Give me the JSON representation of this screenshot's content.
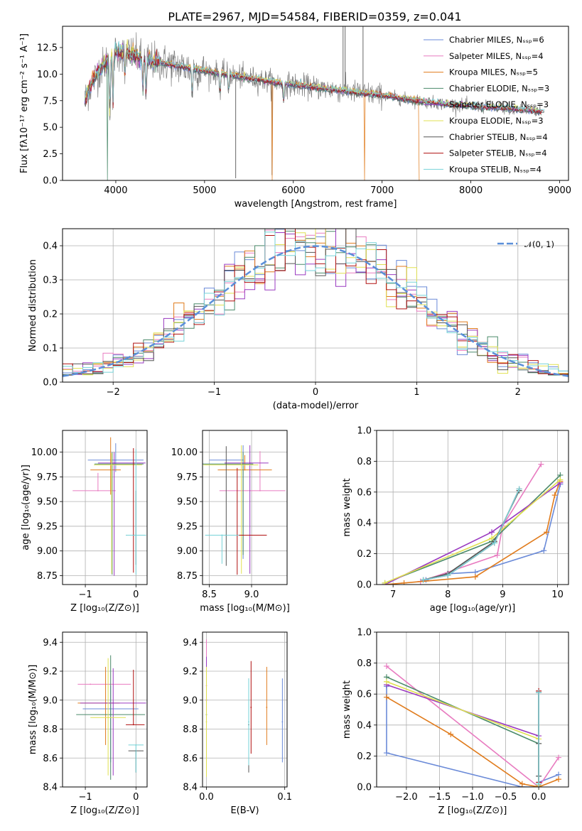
{
  "title": "PLATE=2967, MJD=54584, FIBERID=0359, z=0.041",
  "colors": {
    "chabrier_miles": "#6a8ad8",
    "salpeter_miles": "#e87bc0",
    "kroupa_miles": "#e07b1c",
    "chabrier_elodie": "#4a8a6a",
    "salpeter_elodie": "#9a3ac0",
    "kroupa_elodie": "#e0e050",
    "chabrier_stelib": "#555555",
    "salpeter_stelib": "#b01010",
    "kroupa_stelib": "#76d2d8",
    "observed": "#808080",
    "gaussian": "#5b8fd9"
  },
  "chart_data": [
    {
      "id": "spectrum",
      "type": "line",
      "xlabel": "wavelength [Angstrom, rest frame]",
      "ylabel": "Flux [fλ10⁻¹⁷ erg cm⁻² s⁻¹ A⁻¹]",
      "xlim": [
        3400,
        9100
      ],
      "ylim": [
        0,
        14.5
      ],
      "xticks": [
        "4000",
        "5000",
        "6000",
        "7000",
        "8000",
        "9000"
      ],
      "yticks": [
        "0.0",
        "2.5",
        "5.0",
        "7.5",
        "10.0",
        "12.5"
      ],
      "legend_position": "upper-right",
      "legend": [
        "Chabrier MILES, Nₛₛₚ=6",
        "Salpeter MILES, Nₛₛₚ=4",
        "Kroupa MILES, Nₛₛₚ=5",
        "Chabrier ELODIE, Nₛₛₚ=3",
        "Salpeter ELODIE, Nₛₛₚ=3",
        "Kroupa ELODIE, Nₛₛₚ=3",
        "Chabrier STELIB, Nₛₛₚ=4",
        "Salpeter STELIB, Nₛₛₚ=4",
        "Kroupa STELIB, Nₛₛₚ=4"
      ],
      "continuum": {
        "x": [
          3650,
          3700,
          3800,
          3900,
          4000,
          4100,
          4200,
          4300,
          4500,
          4800,
          5000,
          5300,
          5600,
          5900,
          6200,
          6500,
          6800,
          7000,
          7300,
          7600,
          8000,
          8400,
          8800
        ],
        "y": [
          7.5,
          8.6,
          10.2,
          11.2,
          12.0,
          12.1,
          11.8,
          11.4,
          11.1,
          10.6,
          10.3,
          9.9,
          9.5,
          9.1,
          8.8,
          8.5,
          8.2,
          8.0,
          7.6,
          7.3,
          7.0,
          6.8,
          6.5
        ]
      },
      "absorption_lines": [
        {
          "x": 3933,
          "depth": 0.45
        },
        {
          "x": 3968,
          "depth": 0.4
        },
        {
          "x": 4102,
          "depth": 0.2
        },
        {
          "x": 4304,
          "depth": 0.25
        },
        {
          "x": 4340,
          "depth": 0.3
        },
        {
          "x": 4861,
          "depth": 0.25
        },
        {
          "x": 5175,
          "depth": 0.2
        },
        {
          "x": 5270,
          "depth": 0.15
        },
        {
          "x": 5892,
          "depth": 0.2
        }
      ],
      "model_dropouts": [
        {
          "x": 3905,
          "series": "chabrier_elodie"
        },
        {
          "x": 5765,
          "series": "kroupa_miles"
        },
        {
          "x": 6800,
          "series": "kroupa_miles"
        },
        {
          "x": 7420,
          "series": "kroupa_miles"
        }
      ],
      "observed_spikes": [
        {
          "x": 5350,
          "y": 0.2
        },
        {
          "x": 5760,
          "y": 0.5
        },
        {
          "x": 6560,
          "y": 14.5
        },
        {
          "x": 6583,
          "y": 14.5
        },
        {
          "x": 6785,
          "y": 14.5
        }
      ]
    },
    {
      "id": "residuals",
      "type": "line",
      "xlabel": "(data-model)/error",
      "ylabel": "Normed distribution",
      "xlim": [
        -2.5,
        2.5
      ],
      "ylim": [
        0,
        0.45
      ],
      "xticks": [
        "−2",
        "−1",
        "0",
        "1",
        "2"
      ],
      "yticks": [
        "0.0",
        "0.1",
        "0.2",
        "0.3",
        "0.4"
      ],
      "legend_position": "upper-right",
      "legend": [
        "𝒩(0, 1)"
      ],
      "bin_width": 0.1,
      "bin_start": -2.5,
      "base_gaussian_sigma": 1.0
    },
    {
      "id": "age-vs-Z",
      "type": "scatter",
      "xlabel": "Z [log₁₀(Z/Z⊙)]",
      "ylabel": "age  [log₁₀(age/yr)]",
      "xlim": [
        -1.45,
        0.22
      ],
      "ylim": [
        8.66,
        10.22
      ],
      "xticks": [
        "−1",
        "0"
      ],
      "yticks": [
        "8.75",
        "9.00",
        "9.25",
        "9.50",
        "9.75",
        "10.00"
      ],
      "points": [
        {
          "series": "chabrier_miles",
          "x": -0.4,
          "xerr": [
            0.55,
            0.55
          ],
          "y": 9.92,
          "yerr": [
            0.12,
            0.17
          ]
        },
        {
          "series": "salpeter_miles",
          "x": -0.75,
          "xerr": [
            0.5,
            0.35
          ],
          "y": 9.61,
          "yerr": [
            0.0,
            0.18
          ]
        },
        {
          "series": "kroupa_miles",
          "x": -0.5,
          "xerr": [
            0.4,
            0.2
          ],
          "y": 9.82,
          "yerr": [
            0.25,
            0.33
          ]
        },
        {
          "series": "chabrier_elodie",
          "x": -0.47,
          "xerr": [
            0.35,
            0.62
          ],
          "y": 9.88,
          "yerr": [
            1.12,
            0.12
          ]
        },
        {
          "series": "salpeter_elodie",
          "x": -0.43,
          "xerr": [
            0.32,
            0.62
          ],
          "y": 9.89,
          "yerr": [
            1.14,
            0.11
          ]
        },
        {
          "series": "kroupa_elodie",
          "x": -0.48,
          "xerr": [
            0.35,
            0.6
          ],
          "y": 9.87,
          "yerr": [
            1.1,
            0.12
          ]
        },
        {
          "series": "chabrier_stelib",
          "x": 0.0,
          "xerr": [
            0.0,
            0.0
          ],
          "y": 9.16,
          "yerr": [
            0.3,
            0.45
          ]
        },
        {
          "series": "salpeter_stelib",
          "x": -0.05,
          "xerr": [
            0.15,
            0.2
          ],
          "y": 9.16,
          "yerr": [
            0.38,
            0.88
          ]
        },
        {
          "series": "kroupa_stelib",
          "x": 0.0,
          "xerr": [
            0.2,
            0.2
          ],
          "y": 9.16,
          "yerr": [
            0.4,
            0.87
          ]
        }
      ]
    },
    {
      "id": "age-vs-mass",
      "type": "scatter",
      "xlabel": "mass [log₁₀(M/M⊙)]",
      "ylabel": "",
      "xlim": [
        8.42,
        9.42
      ],
      "ylim": [
        8.66,
        10.22
      ],
      "xticks": [
        "8.5",
        "9.0"
      ],
      "yticks": [
        "8.75",
        "9.00",
        "9.25",
        "9.50",
        "9.75",
        "10.00"
      ],
      "points": [
        {
          "series": "chabrier_miles",
          "x": 8.9,
          "xerr": [
            0.4,
            0.0
          ],
          "y": 9.92,
          "yerr": [
            1.0,
            0.15
          ]
        },
        {
          "series": "salpeter_miles",
          "x": 9.1,
          "xerr": [
            0.48,
            0.3
          ],
          "y": 9.61,
          "yerr": [
            0.0,
            0.4
          ]
        },
        {
          "series": "kroupa_miles",
          "x": 8.92,
          "xerr": [
            0.32,
            0.32
          ],
          "y": 9.82,
          "yerr": [
            0.0,
            0.15
          ]
        },
        {
          "series": "chabrier_elodie",
          "x": 8.9,
          "xerr": [
            0.62,
            0.12
          ],
          "y": 9.88,
          "yerr": [
            0.92,
            0.12
          ]
        },
        {
          "series": "salpeter_elodie",
          "x": 8.98,
          "xerr": [
            0.3,
            0.22
          ],
          "y": 9.89,
          "yerr": [
            1.12,
            0.18
          ]
        },
        {
          "series": "kroupa_elodie",
          "x": 8.88,
          "xerr": [
            0.45,
            0.2
          ],
          "y": 9.87,
          "yerr": [
            1.1,
            0.2
          ]
        },
        {
          "series": "chabrier_stelib",
          "x": 8.7,
          "xerr": [
            0.2,
            0.0
          ],
          "y": 9.16,
          "yerr": [
            0.31,
            0.9
          ]
        },
        {
          "series": "salpeter_stelib",
          "x": 8.83,
          "xerr": [
            0.0,
            0.35
          ],
          "y": 9.16,
          "yerr": [
            0.4,
            0.68
          ]
        },
        {
          "series": "kroupa_stelib",
          "x": 8.65,
          "xerr": [
            0.2,
            0.2
          ],
          "y": 9.16,
          "yerr": [
            0.29,
            0.0
          ]
        }
      ]
    },
    {
      "id": "weight-vs-age",
      "type": "line",
      "xlabel": "age  [log₁₀(age/yr)]",
      "ylabel": "mass weight",
      "xlim": [
        6.7,
        10.2
      ],
      "ylim": [
        0,
        1.0
      ],
      "xticks": [
        "7",
        "8",
        "9",
        "10"
      ],
      "yticks": [
        "0.0",
        "0.2",
        "0.4",
        "0.6",
        "0.8",
        "1.0"
      ],
      "series": [
        {
          "series": "chabrier_miles",
          "x": [
            7.6,
            8.0,
            8.5,
            9.75,
            10.05
          ],
          "y": [
            0.03,
            0.07,
            0.08,
            0.22,
            0.65
          ]
        },
        {
          "series": "salpeter_miles",
          "x": [
            7.5,
            8.9,
            9.0,
            9.7
          ],
          "y": [
            0.02,
            0.19,
            0.38,
            0.78
          ]
        },
        {
          "series": "kroupa_miles",
          "x": [
            6.85,
            7.2,
            8.5,
            9.8,
            9.95,
            10.05
          ],
          "y": [
            0.0,
            0.01,
            0.05,
            0.34,
            0.58,
            0.67
          ]
        },
        {
          "series": "chabrier_elodie",
          "x": [
            6.85,
            8.8,
            10.05
          ],
          "y": [
            0.01,
            0.28,
            0.71
          ]
        },
        {
          "series": "salpeter_elodie",
          "x": [
            6.85,
            8.8,
            10.05
          ],
          "y": [
            0.0,
            0.34,
            0.66
          ]
        },
        {
          "series": "kroupa_elodie",
          "x": [
            6.85,
            8.8,
            10.05
          ],
          "y": [
            0.01,
            0.3,
            0.68
          ]
        },
        {
          "series": "chabrier_stelib",
          "x": [
            7.55,
            8.0,
            8.85,
            9.3
          ],
          "y": [
            0.03,
            0.07,
            0.28,
            0.61
          ]
        },
        {
          "series": "salpeter_stelib",
          "x": [
            7.55,
            8.0,
            8.85,
            9.3
          ],
          "y": [
            0.03,
            0.06,
            0.27,
            0.62
          ]
        },
        {
          "series": "kroupa_stelib",
          "x": [
            7.55,
            8.0,
            8.85,
            9.3
          ],
          "y": [
            0.03,
            0.06,
            0.27,
            0.62
          ]
        }
      ]
    },
    {
      "id": "mass-vs-Z",
      "type": "scatter",
      "xlabel": "Z [log₁₀(Z/Z⊙)]",
      "ylabel": "mass [log₁₀(M/M⊙)]",
      "xlim": [
        -1.45,
        0.22
      ],
      "ylim": [
        8.4,
        9.47
      ],
      "xticks": [
        "−1",
        "0"
      ],
      "yticks": [
        "8.4",
        "8.6",
        "8.8",
        "9.0",
        "9.2",
        "9.4"
      ],
      "points": [
        {
          "series": "chabrier_miles",
          "x": -0.5,
          "xerr": [
            0.55,
            0.55
          ],
          "y": 8.94,
          "yerr": [
            0.37,
            0.16
          ]
        },
        {
          "series": "salpeter_miles",
          "x": -0.9,
          "xerr": [
            0.25,
            0.8
          ],
          "y": 9.11,
          "yerr": [
            0.0,
            0.0
          ]
        },
        {
          "series": "kroupa_miles",
          "x": -0.6,
          "xerr": [
            0.55,
            0.28
          ],
          "y": 8.98,
          "yerr": [
            0.29,
            0.25
          ]
        },
        {
          "series": "chabrier_elodie",
          "x": -0.5,
          "xerr": [
            0.68,
            0.68
          ],
          "y": 8.9,
          "yerr": [
            0.45,
            0.41
          ]
        },
        {
          "series": "salpeter_elodie",
          "x": -0.45,
          "xerr": [
            0.65,
            0.65
          ],
          "y": 8.98,
          "yerr": [
            0.5,
            0.24
          ]
        },
        {
          "series": "kroupa_elodie",
          "x": -0.55,
          "xerr": [
            0.35,
            0.35
          ],
          "y": 8.88,
          "yerr": [
            0.4,
            0.41
          ]
        },
        {
          "series": "chabrier_stelib",
          "x": 0.0,
          "xerr": [
            0.15,
            0.15
          ],
          "y": 8.65,
          "yerr": [
            0.15,
            0.0
          ]
        },
        {
          "series": "salpeter_stelib",
          "x": -0.05,
          "xerr": [
            0.15,
            0.22
          ],
          "y": 8.83,
          "yerr": [
            0.0,
            0.38
          ]
        },
        {
          "series": "kroupa_stelib",
          "x": 0.0,
          "xerr": [
            0.15,
            0.15
          ],
          "y": 8.69,
          "yerr": [
            0.19,
            0.0
          ]
        }
      ]
    },
    {
      "id": "mass-vs-EBV",
      "type": "scatter",
      "xlabel": "E(B-V)",
      "ylabel": "",
      "xlim": [
        -0.005,
        0.103
      ],
      "ylim": [
        8.4,
        9.47
      ],
      "xticks": [
        "0.0",
        "0.1"
      ],
      "yticks": [
        "8.4",
        "8.6",
        "8.8",
        "9.0",
        "9.2",
        "9.4"
      ],
      "points": [
        {
          "series": "chabrier_miles",
          "x": 0.097,
          "xerr": [
            0.0,
            0.0
          ],
          "y": 8.85,
          "yerr": [
            0.28,
            0.3
          ]
        },
        {
          "series": "salpeter_miles",
          "x": 0.0,
          "xerr": [
            0.0,
            0.0
          ],
          "y": 9.1,
          "yerr": [
            0.0,
            0.32
          ]
        },
        {
          "series": "kroupa_miles",
          "x": 0.077,
          "xerr": [
            0.0,
            0.0
          ],
          "y": 8.95,
          "yerr": [
            0.26,
            0.28
          ]
        },
        {
          "series": "chabrier_elodie",
          "x": 0.0,
          "xerr": [
            0.0,
            0.0
          ],
          "y": 8.9,
          "yerr": [
            0.3,
            0.35
          ]
        },
        {
          "series": "salpeter_elodie",
          "x": 0.0,
          "xerr": [
            0.0,
            0.0
          ],
          "y": 9.0,
          "yerr": [
            0.4,
            0.3
          ]
        },
        {
          "series": "kroupa_elodie",
          "x": 0.0,
          "xerr": [
            0.0,
            0.0
          ],
          "y": 8.85,
          "yerr": [
            0.38,
            0.38
          ]
        },
        {
          "series": "chabrier_stelib",
          "x": 0.054,
          "xerr": [
            0.0,
            0.0
          ],
          "y": 8.83,
          "yerr": [
            0.33,
            0.32
          ]
        },
        {
          "series": "salpeter_stelib",
          "x": 0.057,
          "xerr": [
            0.0,
            0.0
          ],
          "y": 8.95,
          "yerr": [
            0.32,
            0.32
          ]
        },
        {
          "series": "kroupa_stelib",
          "x": 0.054,
          "xerr": [
            0.0,
            0.0
          ],
          "y": 8.85,
          "yerr": [
            0.3,
            0.3
          ]
        }
      ]
    },
    {
      "id": "weight-vs-Z",
      "type": "line",
      "xlabel": "Z [log₁₀(Z/Z⊙)]",
      "ylabel": "mass weight",
      "xlim": [
        -2.45,
        0.45
      ],
      "ylim": [
        0,
        1.0
      ],
      "xticks": [
        "−2.0",
        "−1.5",
        "−1.0",
        "−0.5",
        "0.0"
      ],
      "yticks": [
        "0.0",
        "0.2",
        "0.4",
        "0.6",
        "0.8",
        "1.0"
      ],
      "series": [
        {
          "series": "chabrier_miles",
          "x": [
            -2.3,
            -2.3,
            -0.25,
            0.0,
            0.0,
            0.3
          ],
          "y": [
            0.65,
            0.22,
            0.0,
            0.0,
            0.03,
            0.08
          ]
        },
        {
          "series": "salpeter_miles",
          "x": [
            -2.3,
            0.0,
            0.3
          ],
          "y": [
            0.78,
            0.0,
            0.19
          ]
        },
        {
          "series": "kroupa_miles",
          "x": [
            -2.3,
            -1.33,
            -0.25,
            0.0,
            0.3
          ],
          "y": [
            0.58,
            0.34,
            0.02,
            0.0,
            0.05
          ]
        },
        {
          "series": "chabrier_elodie",
          "x": [
            -2.3,
            0.0,
            0.0
          ],
          "y": [
            0.71,
            0.28,
            0.01
          ]
        },
        {
          "series": "salpeter_elodie",
          "x": [
            -2.3,
            0.0,
            0.0
          ],
          "y": [
            0.66,
            0.33,
            0.01
          ]
        },
        {
          "series": "kroupa_elodie",
          "x": [
            -2.3,
            0.0,
            0.0
          ],
          "y": [
            0.68,
            0.31,
            0.01
          ]
        },
        {
          "series": "chabrier_stelib",
          "x": [
            0.0,
            0.0,
            0.0
          ],
          "y": [
            0.07,
            0.28,
            0.61
          ]
        },
        {
          "series": "salpeter_stelib",
          "x": [
            0.0,
            0.0
          ],
          "y": [
            0.03,
            0.62
          ]
        },
        {
          "series": "kroupa_stelib",
          "x": [
            0.0,
            0.0
          ],
          "y": [
            0.02,
            0.61
          ]
        }
      ]
    }
  ]
}
